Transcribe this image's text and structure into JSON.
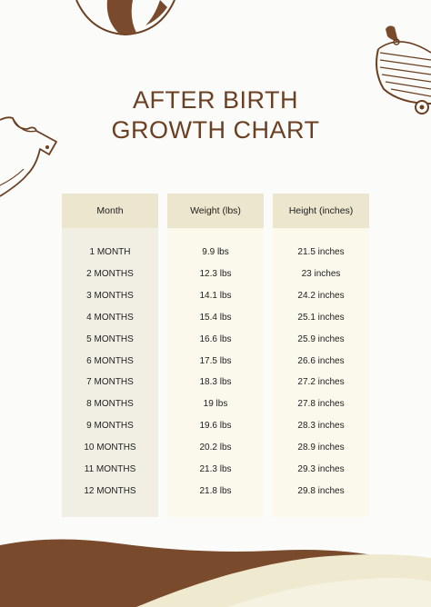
{
  "title": {
    "line1": "AFTER BIRTH",
    "line2": "GROWTH CHART"
  },
  "table": {
    "headers": {
      "month": "Month",
      "weight": "Weight (lbs)",
      "height": "Height (inches)"
    },
    "rows": [
      {
        "month": "1 MONTH",
        "weight": "9.9 lbs",
        "height": "21.5 inches"
      },
      {
        "month": "2 MONTHS",
        "weight": "12.3 lbs",
        "height": "23 inches"
      },
      {
        "month": "3 MONTHS",
        "weight": "14.1 lbs",
        "height": "24.2 inches"
      },
      {
        "month": "4 MONTHS",
        "weight": "15.4 lbs",
        "height": "25.1 inches"
      },
      {
        "month": "5 MONTHS",
        "weight": "16.6 lbs",
        "height": "25.9 inches"
      },
      {
        "month": "6 MONTHS",
        "weight": "17.5 lbs",
        "height": "26.6 inches"
      },
      {
        "month": "7 MONTHS",
        "weight": "18.3 lbs",
        "height": "27.2 inches"
      },
      {
        "month": "8 MONTHS",
        "weight": "19 lbs",
        "height": "27.8 inches"
      },
      {
        "month": "9 MONTHS",
        "weight": "19.6 lbs",
        "height": "28.3 inches"
      },
      {
        "month": "10 MONTHS",
        "weight": "20.2 lbs",
        "height": "28.9 inches"
      },
      {
        "month": "11 MONTHS",
        "weight": "21.3 lbs",
        "height": "29.3 inches"
      },
      {
        "month": "12 MONTHS",
        "weight": "21.8 lbs",
        "height": "29.8 inches"
      }
    ]
  },
  "colors": {
    "title": "#6b3f22",
    "header_bg": "#ebe6cd",
    "month_col_bg": "#f1efe3",
    "value_col_bg": "#fbf8ec",
    "wave_dark": "#7a4a2c",
    "wave_light": "#efe9d0"
  },
  "icons": [
    "baby-ball-icon",
    "baby-onesie-icon",
    "baby-stroller-icon"
  ]
}
